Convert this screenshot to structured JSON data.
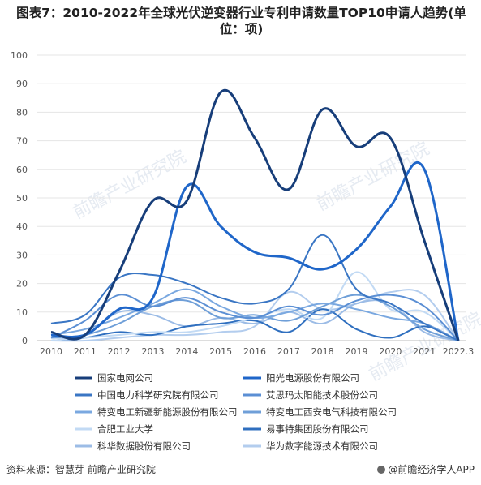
{
  "title": "图表7：2010-2022年全球光伏逆变器行业专利申请数量TOP10申请人趋势(单位：项)",
  "source": "资料来源：智慧芽 前瞻产业研究院",
  "brand": "@前瞻经济学人APP",
  "watermark": "前瞻产业研究院",
  "chart_data": {
    "type": "line",
    "categories": [
      "2010",
      "2011",
      "2012",
      "2013",
      "2014",
      "2015",
      "2016",
      "2017",
      "2018",
      "2019",
      "2020",
      "2021",
      "2022.3"
    ],
    "ylim": [
      0,
      100
    ],
    "yticks": [
      0,
      10,
      20,
      30,
      40,
      50,
      60,
      70,
      80,
      90,
      100
    ],
    "series": [
      {
        "name": "国家电网公司",
        "color": "#173e7a",
        "width": 3,
        "values": [
          3,
          2,
          24,
          49,
          49,
          87,
          71,
          53,
          81,
          68,
          71,
          35,
          0
        ]
      },
      {
        "name": "阳光电源股份有限公司",
        "color": "#1f66c9",
        "width": 3,
        "values": [
          2,
          2,
          11,
          15,
          54,
          40,
          31,
          29,
          25,
          32,
          47,
          60,
          0
        ]
      },
      {
        "name": "中国电力科学研究院有限公司",
        "color": "#3a76c4",
        "width": 2,
        "values": [
          6,
          9,
          22,
          23,
          20,
          15,
          13,
          18,
          37,
          18,
          13,
          6,
          0
        ]
      },
      {
        "name": "艾思玛太阳能技术股份公司",
        "color": "#5b8fd4",
        "width": 2,
        "values": [
          1,
          7,
          16,
          12,
          15,
          10,
          8,
          12,
          9,
          14,
          16,
          12,
          0
        ]
      },
      {
        "name": "特变电工新疆新能源股份有限公司",
        "color": "#7aa8e0",
        "width": 2,
        "values": [
          2,
          4,
          8,
          13,
          18,
          12,
          8,
          10,
          13,
          11,
          8,
          6,
          0
        ]
      },
      {
        "name": "特变电工西安电气科技有限公司",
        "color": "#6f9fd8",
        "width": 2,
        "values": [
          1,
          2,
          6,
          12,
          14,
          8,
          9,
          7,
          12,
          16,
          12,
          4,
          0
        ]
      },
      {
        "name": "合肥工业大学",
        "color": "#c2daf4",
        "width": 2,
        "values": [
          0,
          1,
          2,
          3,
          3,
          5,
          8,
          11,
          8,
          24,
          11,
          10,
          0
        ]
      },
      {
        "name": "易事特集团股份有限公司",
        "color": "#2f6fbf",
        "width": 2,
        "values": [
          0,
          1,
          3,
          2,
          5,
          6,
          7,
          3,
          11,
          4,
          1,
          5,
          0
        ]
      },
      {
        "name": "科华数据股份有限公司",
        "color": "#9cbce6",
        "width": 2,
        "values": [
          1,
          2,
          10,
          9,
          5,
          8,
          6,
          10,
          6,
          13,
          13,
          3,
          0
        ]
      },
      {
        "name": "华为数字能源技术有限公司",
        "color": "#b3cdee",
        "width": 2,
        "values": [
          0,
          0,
          1,
          2,
          2,
          3,
          5,
          17,
          11,
          13,
          17,
          16,
          0
        ]
      }
    ]
  }
}
